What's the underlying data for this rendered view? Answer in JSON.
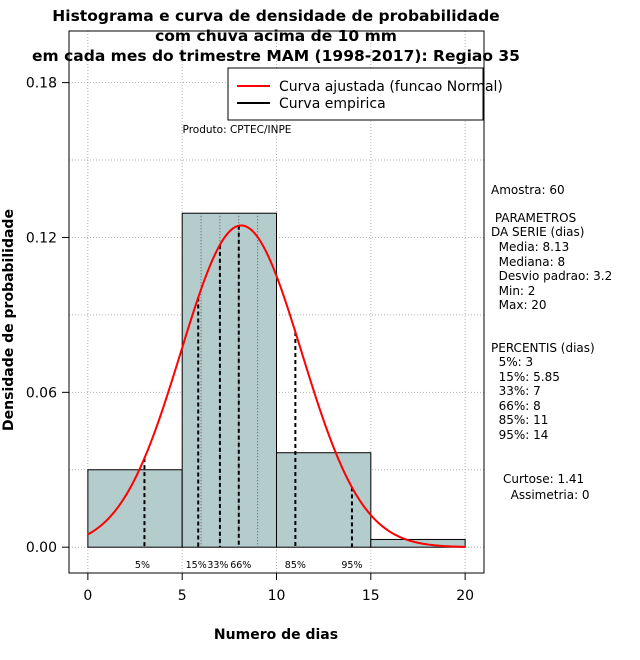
{
  "chart_data": {
    "type": "bar",
    "title_lines": [
      "Histograma e curva de densidade de probabilidade",
      "com chuva acima de 10 mm",
      "em cada mes do trimestre MAM (1998-2017): Regiao 35"
    ],
    "xlabel": "Numero de dias",
    "ylabel": "Densidade de probabilidade",
    "xlim": [
      -1,
      21
    ],
    "ylim": [
      -0.01,
      0.2
    ],
    "x_ticks": [
      0,
      5,
      10,
      15,
      20
    ],
    "y_ticks": [
      0.0,
      0.06,
      0.12,
      0.18
    ],
    "y_tick_labels": [
      "0.00",
      "0.06",
      "0.12",
      "0.18"
    ],
    "grid": true,
    "legend_position": "top-right",
    "bins": [
      {
        "from": 0,
        "to": 5,
        "density": 0.03
      },
      {
        "from": 5,
        "to": 10,
        "density": 0.1294
      },
      {
        "from": 10,
        "to": 15,
        "density": 0.0366
      },
      {
        "from": 15,
        "to": 20,
        "density": 0.003
      }
    ],
    "normal_curve": {
      "mean": 8.13,
      "sd": 3.2,
      "x_range": [
        0,
        20
      ]
    },
    "percentiles": [
      {
        "label": "5%",
        "x": 3
      },
      {
        "label": "15%",
        "x": 5.85
      },
      {
        "label": "33%",
        "x": 7
      },
      {
        "label": "66%",
        "x": 8
      },
      {
        "label": "85%",
        "x": 11
      },
      {
        "label": "95%",
        "x": 14
      }
    ],
    "series": [
      {
        "name": "Curva ajustada (funcao Normal)",
        "color": "#ff0000"
      },
      {
        "name": "Curva empirica",
        "color": "#000000"
      }
    ],
    "credit": "Produto: CPTEC/INPE",
    "bar_color": "#b5cccc"
  },
  "stats": {
    "amostra": "Amostra: 60",
    "params_title1": " PARAMETROS",
    "params_title2": "DA SERIE (dias)",
    "media": "  Media: 8.13",
    "mediana": "  Mediana: 8",
    "desvio": "  Desvio padrao: 3.2",
    "min": "  Min: 2",
    "max": "  Max: 20",
    "percentis_title": "PERCENTIS (dias)",
    "p5": "  5%: 3",
    "p15": "  15%: 5.85",
    "p33": "  33%: 7",
    "p66": "  66%: 8",
    "p85": "  85%: 11",
    "p95": "  95%: 14",
    "curtose": "Curtose: 1.41",
    "assimetria": "  Assimetria: 0"
  }
}
